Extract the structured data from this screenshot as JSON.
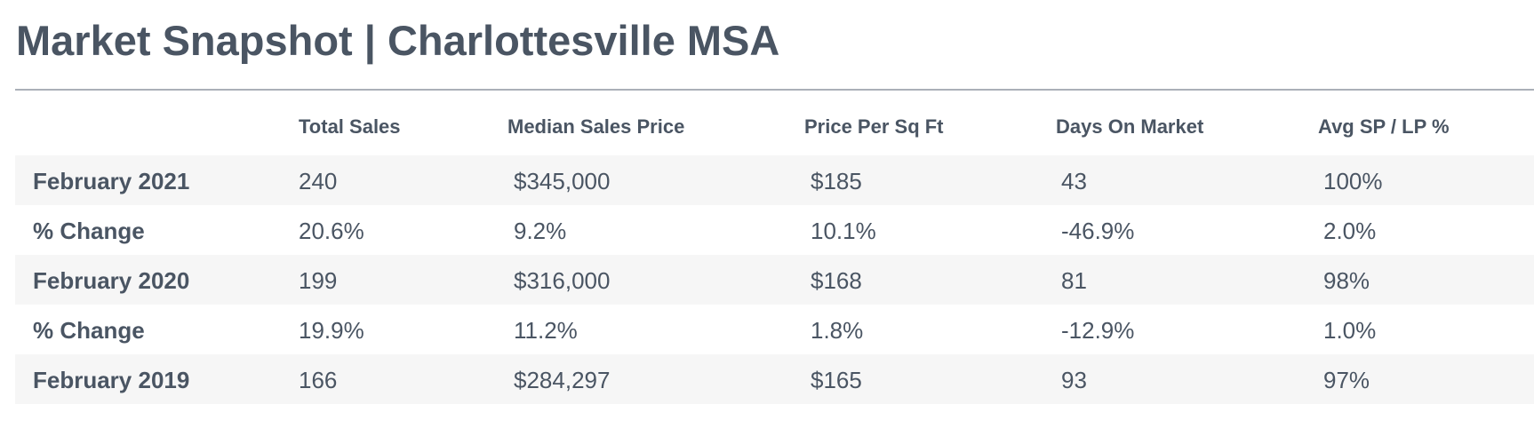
{
  "title": "Market Snapshot | Charlottesville MSA",
  "table": {
    "headers": [
      "Total Sales",
      "Median Sales Price",
      "Price Per Sq Ft",
      "Days On Market",
      "Avg SP / LP %"
    ],
    "rows": [
      {
        "label": "February 2021",
        "values": [
          "240",
          "$345,000",
          "$185",
          "43",
          "100%"
        ]
      },
      {
        "label": "% Change",
        "values": [
          "20.6%",
          "9.2%",
          "10.1%",
          "-46.9%",
          "2.0%"
        ]
      },
      {
        "label": "February 2020",
        "values": [
          "199",
          "$316,000",
          "$168",
          "81",
          "98%"
        ]
      },
      {
        "label": "% Change",
        "values": [
          "19.9%",
          "11.2%",
          "1.8%",
          "-12.9%",
          "1.0%"
        ]
      },
      {
        "label": "February 2019",
        "values": [
          "166",
          "$284,297",
          "$165",
          "93",
          "97%"
        ]
      }
    ]
  }
}
